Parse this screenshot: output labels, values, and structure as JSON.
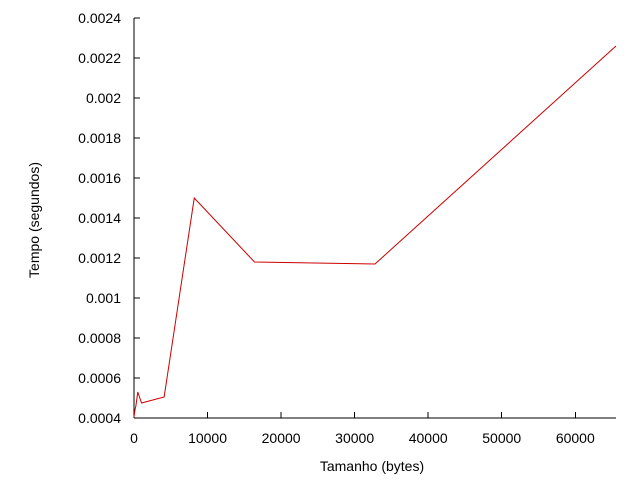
{
  "chart_data": {
    "type": "line",
    "title": "",
    "xlabel": "Tamanho (bytes)",
    "ylabel": "Tempo (segundos)",
    "xlim": [
      0,
      65536
    ],
    "ylim": [
      0.0004,
      0.0024
    ],
    "x_ticks": [
      0,
      10000,
      20000,
      30000,
      40000,
      50000,
      60000
    ],
    "x_tick_labels": [
      "0",
      "10000",
      "20000",
      "30000",
      "40000",
      "50000",
      "60000"
    ],
    "y_ticks": [
      0.0004,
      0.0006,
      0.0008,
      0.001,
      0.0012,
      0.0014,
      0.0016,
      0.0018,
      0.002,
      0.0022,
      0.0024
    ],
    "y_tick_labels": [
      "0.0004",
      "0.0006",
      "0.0008",
      "0.001",
      "0.0012",
      "0.0014",
      "0.0016",
      "0.0018",
      "0.002",
      "0.0022",
      "0.0024"
    ],
    "grid": false,
    "legend": "none",
    "series": [
      {
        "color": "#cc0000",
        "x": [
          0,
          128,
          256,
          512,
          1024,
          2048,
          4096,
          8192,
          16384,
          32768,
          65536
        ],
        "y": [
          0.000405,
          0.00044,
          0.00046,
          0.00053,
          0.000475,
          0.000485,
          0.000505,
          0.0015,
          0.00118,
          0.00117,
          0.00226
        ]
      }
    ]
  }
}
